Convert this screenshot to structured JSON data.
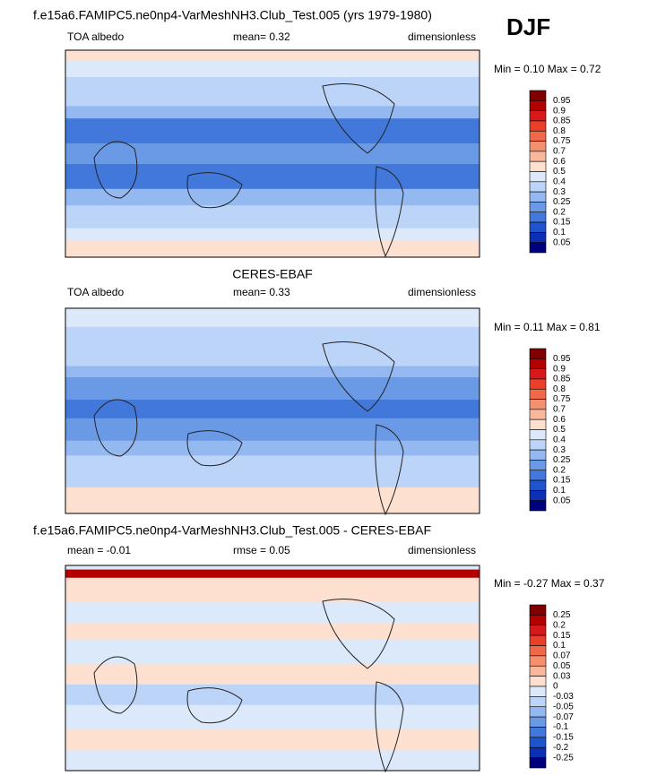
{
  "header": {
    "season": "DJF"
  },
  "panels": [
    {
      "title": "f.e15a6.FAMIPC5.ne0np4-VarMeshNH3.Club_Test.005 (yrs 1979-1980)",
      "left": "TOA albedo",
      "center": "mean=   0.32",
      "right": "dimensionless",
      "minmax": "Min =   0.10 Max =   0.72",
      "colorbar": {
        "levels": [
          "0.95",
          "0.9",
          "0.85",
          "0.8",
          "0.75",
          "0.7",
          "0.6",
          "0.5",
          "0.4",
          "0.3",
          "0.25",
          "0.2",
          "0.15",
          "0.1",
          "0.05"
        ],
        "colors": [
          "#800000",
          "#b30000",
          "#d7191c",
          "#e8402a",
          "#f06a4a",
          "#f5906f",
          "#f9b89c",
          "#fde0cf",
          "#dce9fb",
          "#bcd4f7",
          "#93b9f0",
          "#6a9ae6",
          "#4178da",
          "#1f55cc",
          "#0b2fb5",
          "#00007f"
        ]
      }
    },
    {
      "title": "CERES-EBAF",
      "left": "TOA albedo",
      "center": "mean=   0.33",
      "right": "dimensionless",
      "minmax": "Min =   0.11 Max =   0.81",
      "colorbar": {
        "levels": [
          "0.95",
          "0.9",
          "0.85",
          "0.8",
          "0.75",
          "0.7",
          "0.6",
          "0.5",
          "0.4",
          "0.3",
          "0.25",
          "0.2",
          "0.15",
          "0.1",
          "0.05"
        ],
        "colors": [
          "#800000",
          "#b30000",
          "#d7191c",
          "#e8402a",
          "#f06a4a",
          "#f5906f",
          "#f9b89c",
          "#fde0cf",
          "#dce9fb",
          "#bcd4f7",
          "#93b9f0",
          "#6a9ae6",
          "#4178da",
          "#1f55cc",
          "#0b2fb5",
          "#00007f"
        ]
      }
    },
    {
      "title": "f.e15a6.FAMIPC5.ne0np4-VarMeshNH3.Club_Test.005 - CERES-EBAF",
      "left": "mean =  -0.01",
      "center": "rmse =   0.05",
      "right": "dimensionless",
      "minmax": "Min =  -0.27 Max =   0.37",
      "colorbar": {
        "levels": [
          "0.25",
          "0.2",
          "0.15",
          "0.1",
          "0.07",
          "0.05",
          "0.03",
          "0",
          "-0.03",
          "-0.05",
          "-0.07",
          "-0.1",
          "-0.15",
          "-0.2",
          "-0.25"
        ],
        "colors": [
          "#800000",
          "#b30000",
          "#d7191c",
          "#e8402a",
          "#f06a4a",
          "#f5906f",
          "#f9b89c",
          "#fde0cf",
          "#dce9fb",
          "#bcd4f7",
          "#93b9f0",
          "#6a9ae6",
          "#4178da",
          "#1f55cc",
          "#0b2fb5",
          "#00007f"
        ]
      }
    }
  ]
}
